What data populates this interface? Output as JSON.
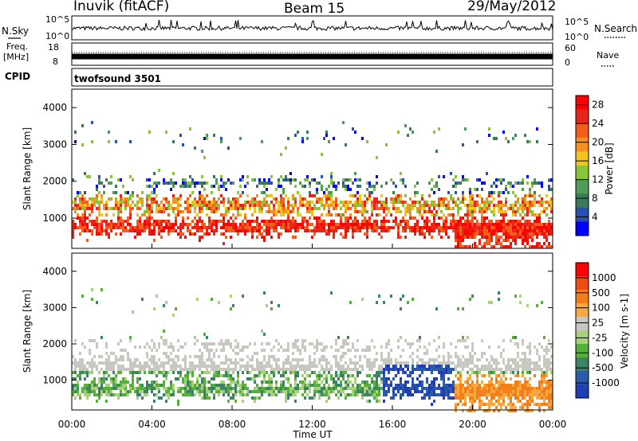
{
  "header": {
    "station": "Inuvik (fitACF)",
    "beam": "Beam 15",
    "date": "29/May/2012"
  },
  "strip": {
    "nsky_label": "N.Sky",
    "nsky_ticks": [
      "10^5",
      "10^0"
    ],
    "nsearch_label": "N.Search",
    "nsearch_ticks": [
      "10^5",
      "10^0"
    ],
    "freq_label": "Freq.",
    "freq_unit": "[MHz]",
    "freq_ticks": [
      "18",
      "8"
    ],
    "nave_label": "Nave",
    "nave_ticks": [
      "60",
      "0"
    ],
    "cpid_label": "CPID",
    "cpid_value": "twofsound 3501"
  },
  "colors": {
    "power_scale": [
      "#0000ff",
      "#2a50b4",
      "#3c7a5c",
      "#4f9b57",
      "#89c53a",
      "#f2c41c",
      "#f6901f",
      "#f25e1c",
      "#e8241b",
      "#ff0000"
    ],
    "velocity_scale": [
      "#1f3fb2",
      "#2b5aa8",
      "#3b8465",
      "#56b03c",
      "#a7d27b",
      "#c8c8c0",
      "#f7a83e",
      "#f37f1a",
      "#f04a15",
      "#ff0000"
    ]
  },
  "chart_data": [
    {
      "type": "heatmap",
      "name": "power",
      "ylabel": "Slant Range [km]",
      "ylim": [
        180,
        4500
      ],
      "yticks": [
        "1000",
        "2000",
        "3000",
        "4000"
      ],
      "xlim": [
        "00:00",
        "24:00"
      ],
      "xticks": [
        "00:00",
        "04:00",
        "08:00",
        "12:00",
        "16:00",
        "20:00",
        "00:00"
      ],
      "colorbar_label": "Power [dB]",
      "colorbar_ticks": [
        "4",
        "8",
        "12",
        "16",
        "20",
        "24",
        "28"
      ],
      "colorbar_range": [
        0,
        30
      ]
    },
    {
      "type": "heatmap",
      "name": "velocity",
      "ylabel": "Slant Range [km]",
      "ylim": [
        180,
        4500
      ],
      "yticks": [
        "1000",
        "2000",
        "3000",
        "4000"
      ],
      "xlim": [
        "00:00",
        "24:00"
      ],
      "xticks": [
        "00:00",
        "04:00",
        "08:00",
        "12:00",
        "16:00",
        "20:00",
        "00:00"
      ],
      "xlabel": "Time UT",
      "colorbar_label": "Velocity [m s-1]",
      "colorbar_ticks": [
        "1000",
        "500",
        "100",
        "25",
        "-25",
        "-100",
        "-500",
        "-1000"
      ]
    }
  ]
}
